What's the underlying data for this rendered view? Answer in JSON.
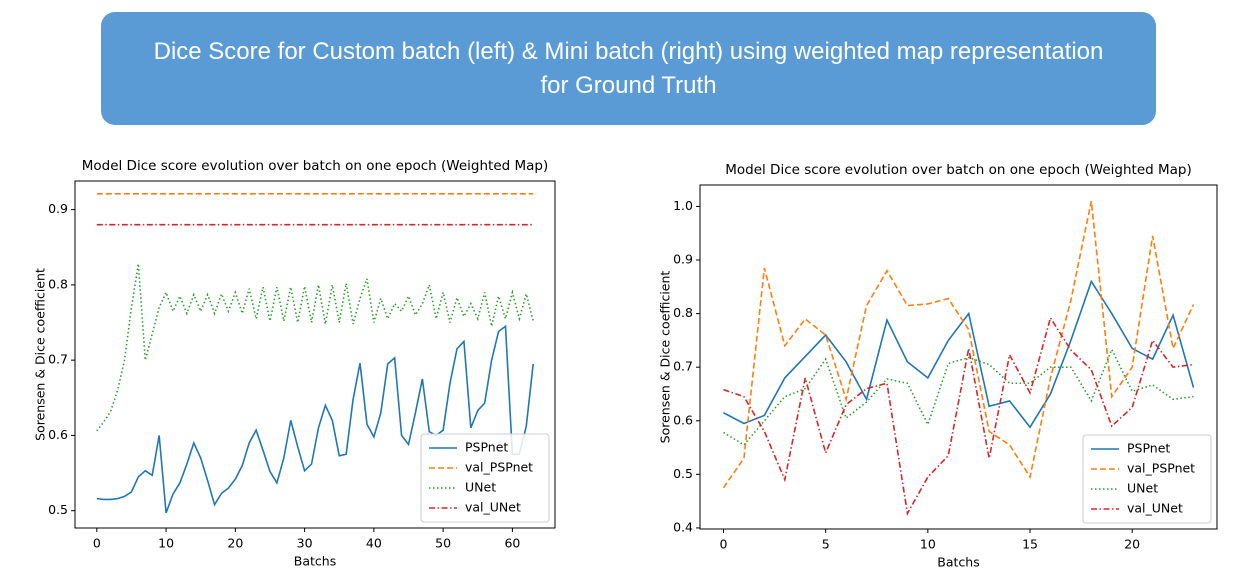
{
  "header": {
    "title": "Dice Score for Custom batch (left) & Mini batch (right) using weighted map representation for Ground Truth"
  },
  "chart_data": [
    {
      "type": "line",
      "title": "Model Dice score evolution over batch on one epoch (Weighted Map)",
      "x_label": "Batchs",
      "y_label": "Sorensen & Dice coefficient",
      "x": [
        0,
        1,
        2,
        3,
        4,
        5,
        6,
        7,
        8,
        9,
        10,
        11,
        12,
        13,
        14,
        15,
        16,
        17,
        18,
        19,
        20,
        21,
        22,
        23,
        24,
        25,
        26,
        27,
        28,
        29,
        30,
        31,
        32,
        33,
        34,
        35,
        36,
        37,
        38,
        39,
        40,
        41,
        42,
        43,
        44,
        45,
        46,
        47,
        48,
        49,
        50,
        51,
        52,
        53,
        54,
        55,
        56,
        57,
        58,
        59,
        60,
        61,
        62,
        63
      ],
      "xlim": [
        -3.15,
        66.15
      ],
      "xticks": [
        0,
        10,
        20,
        30,
        40,
        50,
        60
      ],
      "ylim": [
        0.477,
        0.938
      ],
      "yticks": [
        0.5,
        0.6,
        0.7,
        0.8,
        0.9
      ],
      "legend": "lower right",
      "series": [
        {
          "name": "PSPnet",
          "color": "#1f77b4",
          "dash": "solid",
          "values": [
            0.516,
            0.515,
            0.515,
            0.516,
            0.519,
            0.525,
            0.545,
            0.553,
            0.547,
            0.6,
            0.497,
            0.522,
            0.537,
            0.562,
            0.59,
            0.57,
            0.54,
            0.508,
            0.523,
            0.53,
            0.542,
            0.56,
            0.59,
            0.607,
            0.58,
            0.552,
            0.537,
            0.57,
            0.62,
            0.585,
            0.553,
            0.562,
            0.61,
            0.64,
            0.62,
            0.573,
            0.575,
            0.648,
            0.696,
            0.615,
            0.598,
            0.63,
            0.695,
            0.703,
            0.6,
            0.588,
            0.63,
            0.675,
            0.605,
            0.6,
            0.607,
            0.67,
            0.715,
            0.725,
            0.61,
            0.633,
            0.643,
            0.7,
            0.738,
            0.745,
            0.575,
            0.575,
            0.612,
            0.695
          ]
        },
        {
          "name": "val_PSPnet",
          "color": "#ff7f0e",
          "dash": "dashed",
          "values": [
            0.921,
            0.921,
            0.921,
            0.921,
            0.921,
            0.921,
            0.921,
            0.921,
            0.921,
            0.921,
            0.921,
            0.921,
            0.921,
            0.921,
            0.921,
            0.921,
            0.921,
            0.921,
            0.921,
            0.921,
            0.921,
            0.921,
            0.921,
            0.921,
            0.921,
            0.921,
            0.921,
            0.921,
            0.921,
            0.921,
            0.921,
            0.921,
            0.921,
            0.921,
            0.921,
            0.921,
            0.921,
            0.921,
            0.921,
            0.921,
            0.921,
            0.921,
            0.921,
            0.921,
            0.921,
            0.921,
            0.921,
            0.921,
            0.921,
            0.921,
            0.921,
            0.921,
            0.921,
            0.921,
            0.921,
            0.921,
            0.921,
            0.921,
            0.921,
            0.921,
            0.921,
            0.921,
            0.921,
            0.921
          ]
        },
        {
          "name": "UNet",
          "color": "#2ca02c",
          "dash": "dotted",
          "values": [
            0.606,
            0.618,
            0.632,
            0.66,
            0.7,
            0.77,
            0.828,
            0.7,
            0.735,
            0.77,
            0.79,
            0.765,
            0.785,
            0.762,
            0.787,
            0.765,
            0.787,
            0.762,
            0.788,
            0.765,
            0.79,
            0.762,
            0.795,
            0.755,
            0.797,
            0.752,
            0.797,
            0.752,
            0.797,
            0.75,
            0.798,
            0.75,
            0.8,
            0.748,
            0.8,
            0.75,
            0.802,
            0.748,
            0.782,
            0.808,
            0.75,
            0.782,
            0.755,
            0.775,
            0.765,
            0.785,
            0.76,
            0.775,
            0.8,
            0.755,
            0.79,
            0.75,
            0.783,
            0.758,
            0.775,
            0.755,
            0.79,
            0.745,
            0.785,
            0.755,
            0.79,
            0.755,
            0.788,
            0.752
          ]
        },
        {
          "name": "val_UNet",
          "color": "#d62728",
          "dash": "dashdot",
          "values": [
            0.88,
            0.88,
            0.88,
            0.88,
            0.88,
            0.88,
            0.88,
            0.88,
            0.88,
            0.88,
            0.88,
            0.88,
            0.88,
            0.88,
            0.88,
            0.88,
            0.88,
            0.88,
            0.88,
            0.88,
            0.88,
            0.88,
            0.88,
            0.88,
            0.88,
            0.88,
            0.88,
            0.88,
            0.88,
            0.88,
            0.88,
            0.88,
            0.88,
            0.88,
            0.88,
            0.88,
            0.88,
            0.88,
            0.88,
            0.88,
            0.88,
            0.88,
            0.88,
            0.88,
            0.88,
            0.88,
            0.88,
            0.88,
            0.88,
            0.88,
            0.88,
            0.88,
            0.88,
            0.88,
            0.88,
            0.88,
            0.88,
            0.88,
            0.88,
            0.88,
            0.88,
            0.88,
            0.88,
            0.88
          ]
        }
      ]
    },
    {
      "type": "line",
      "title": "Model Dice score evolution over batch on one epoch (Weighted Map)",
      "x_label": "Batchs",
      "y_label": "Sorensen & Dice coefficient",
      "x": [
        0,
        1,
        2,
        3,
        4,
        5,
        6,
        7,
        8,
        9,
        10,
        11,
        12,
        13,
        14,
        15,
        16,
        17,
        18,
        19,
        20,
        21,
        22,
        23
      ],
      "xlim": [
        -1.15,
        24.15
      ],
      "xticks": [
        0,
        5,
        10,
        15,
        20
      ],
      "ylim": [
        0.398,
        1.04
      ],
      "yticks": [
        0.4,
        0.5,
        0.6,
        0.7,
        0.8,
        0.9,
        {
          "value": 1.0,
          "label": "1.0"
        }
      ],
      "legend": "lower right",
      "series": [
        {
          "name": "PSPnet",
          "color": "#1f77b4",
          "dash": "solid",
          "values": [
            0.615,
            0.595,
            0.61,
            0.68,
            0.72,
            0.76,
            0.71,
            0.64,
            0.788,
            0.71,
            0.68,
            0.75,
            0.8,
            0.627,
            0.637,
            0.588,
            0.65,
            0.75,
            0.86,
            0.8,
            0.735,
            0.715,
            0.797,
            0.662
          ]
        },
        {
          "name": "val_PSPnet",
          "color": "#ff7f0e",
          "dash": "dashed",
          "values": [
            0.475,
            0.53,
            0.885,
            0.74,
            0.79,
            0.76,
            0.64,
            0.815,
            0.88,
            0.815,
            0.818,
            0.828,
            0.77,
            0.58,
            0.555,
            0.495,
            0.68,
            0.825,
            1.01,
            0.645,
            0.7,
            0.945,
            0.735,
            0.817
          ]
        },
        {
          "name": "UNet",
          "color": "#2ca02c",
          "dash": "dotted",
          "values": [
            0.578,
            0.555,
            0.6,
            0.645,
            0.66,
            0.715,
            0.605,
            0.635,
            0.678,
            0.67,
            0.593,
            0.707,
            0.718,
            0.705,
            0.67,
            0.67,
            0.7,
            0.7,
            0.637,
            0.733,
            0.655,
            0.667,
            0.64,
            0.645
          ]
        },
        {
          "name": "val_UNet",
          "color": "#d62728",
          "dash": "dashdot",
          "values": [
            0.658,
            0.645,
            0.58,
            0.49,
            0.68,
            0.54,
            0.63,
            0.66,
            0.67,
            0.427,
            0.495,
            0.535,
            0.735,
            0.53,
            0.723,
            0.652,
            0.792,
            0.732,
            0.695,
            0.59,
            0.625,
            0.75,
            0.7,
            0.705
          ]
        }
      ]
    }
  ]
}
